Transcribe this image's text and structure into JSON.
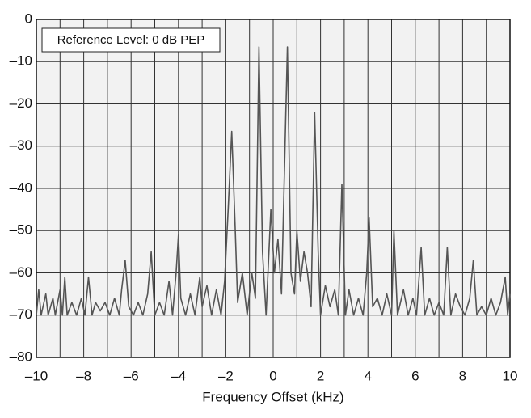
{
  "chart_data": {
    "type": "line",
    "xlabel": "Frequency Offset (kHz)",
    "annotation": "Reference Level: 0 dB PEP",
    "xlim": [
      -10,
      10
    ],
    "ylim": [
      -80,
      0
    ],
    "xticks": [
      {
        "value": -10,
        "label": "–10"
      },
      {
        "value": -8,
        "label": "–8"
      },
      {
        "value": -6,
        "label": "–6"
      },
      {
        "value": -4,
        "label": "–4"
      },
      {
        "value": -2,
        "label": "–2"
      },
      0,
      2,
      4,
      6,
      8,
      10
    ],
    "xminor": [
      -9,
      -7,
      -5,
      -3,
      -1,
      1,
      3,
      5,
      7,
      9
    ],
    "yticks": [
      0,
      {
        "value": -10,
        "label": "–10"
      },
      {
        "value": -20,
        "label": "–20"
      },
      {
        "value": -30,
        "label": "–30"
      },
      {
        "value": -40,
        "label": "–40"
      },
      {
        "value": -50,
        "label": "–50"
      },
      {
        "value": -60,
        "label": "–60"
      },
      {
        "value": -70,
        "label": "–70"
      },
      {
        "value": -80,
        "label": "–80"
      }
    ],
    "grid": true,
    "series": [
      {
        "color": "#555555",
        "x": [
          -10,
          -9.9,
          -9.8,
          -9.6,
          -9.5,
          -9.3,
          -9.2,
          -9.0,
          -8.9,
          -8.8,
          -8.7,
          -8.5,
          -8.3,
          -8.1,
          -7.95,
          -7.8,
          -7.65,
          -7.5,
          -7.3,
          -7.1,
          -6.9,
          -6.7,
          -6.5,
          -6.4,
          -6.25,
          -6.1,
          -5.9,
          -5.7,
          -5.5,
          -5.3,
          -5.15,
          -5.0,
          -4.8,
          -4.6,
          -4.4,
          -4.25,
          -4.1,
          -4.0,
          -3.9,
          -3.7,
          -3.5,
          -3.3,
          -3.1,
          -3.0,
          -2.8,
          -2.6,
          -2.4,
          -2.2,
          -2.05,
          -1.9,
          -1.75,
          -1.6,
          -1.5,
          -1.3,
          -1.1,
          -0.9,
          -0.75,
          -0.6,
          -0.45,
          -0.3,
          -0.1,
          0.05,
          0.2,
          0.35,
          0.6,
          0.75,
          0.9,
          1.0,
          1.15,
          1.3,
          1.45,
          1.6,
          1.75,
          1.9,
          2.0,
          2.2,
          2.4,
          2.6,
          2.75,
          2.9,
          3.05,
          3.2,
          3.4,
          3.6,
          3.8,
          3.95,
          4.05,
          4.2,
          4.4,
          4.6,
          4.8,
          5.0,
          5.1,
          5.25,
          5.5,
          5.7,
          5.9,
          6.05,
          6.25,
          6.4,
          6.6,
          6.8,
          7.0,
          7.2,
          7.35,
          7.5,
          7.7,
          7.9,
          8.1,
          8.3,
          8.45,
          8.6,
          8.8,
          9.0,
          9.2,
          9.4,
          9.6,
          9.8,
          9.9,
          10
        ],
        "values": [
          -70,
          -64,
          -70,
          -65,
          -70,
          -66,
          -70,
          -64,
          -70,
          -61,
          -70,
          -67,
          -70,
          -66,
          -70,
          -61,
          -70,
          -67,
          -69,
          -67,
          -70,
          -66,
          -70,
          -64,
          -57,
          -68,
          -70,
          -67,
          -70,
          -65,
          -55,
          -70,
          -67,
          -70,
          -62,
          -70,
          -60,
          -51,
          -66,
          -70,
          -65,
          -70,
          -61,
          -68,
          -63,
          -70,
          -64,
          -70,
          -62,
          -45,
          -26.5,
          -50,
          -67,
          -60,
          -70,
          -60,
          -66,
          -6.5,
          -55,
          -70,
          -45,
          -60,
          -52,
          -65,
          -6.5,
          -60,
          -65,
          -50,
          -62,
          -55,
          -60,
          -68,
          -22,
          -55,
          -70,
          -63,
          -68,
          -64,
          -70,
          -39,
          -70,
          -64,
          -70,
          -66,
          -70,
          -60,
          -47,
          -68,
          -66,
          -70,
          -65,
          -70,
          -50,
          -70,
          -64,
          -70,
          -66,
          -70,
          -54,
          -70,
          -66,
          -70,
          -67,
          -70,
          -54,
          -70,
          -65,
          -68,
          -70,
          -66,
          -57,
          -70,
          -68,
          -70,
          -66,
          -70,
          -67,
          -61,
          -70,
          -65
        ]
      }
    ]
  }
}
